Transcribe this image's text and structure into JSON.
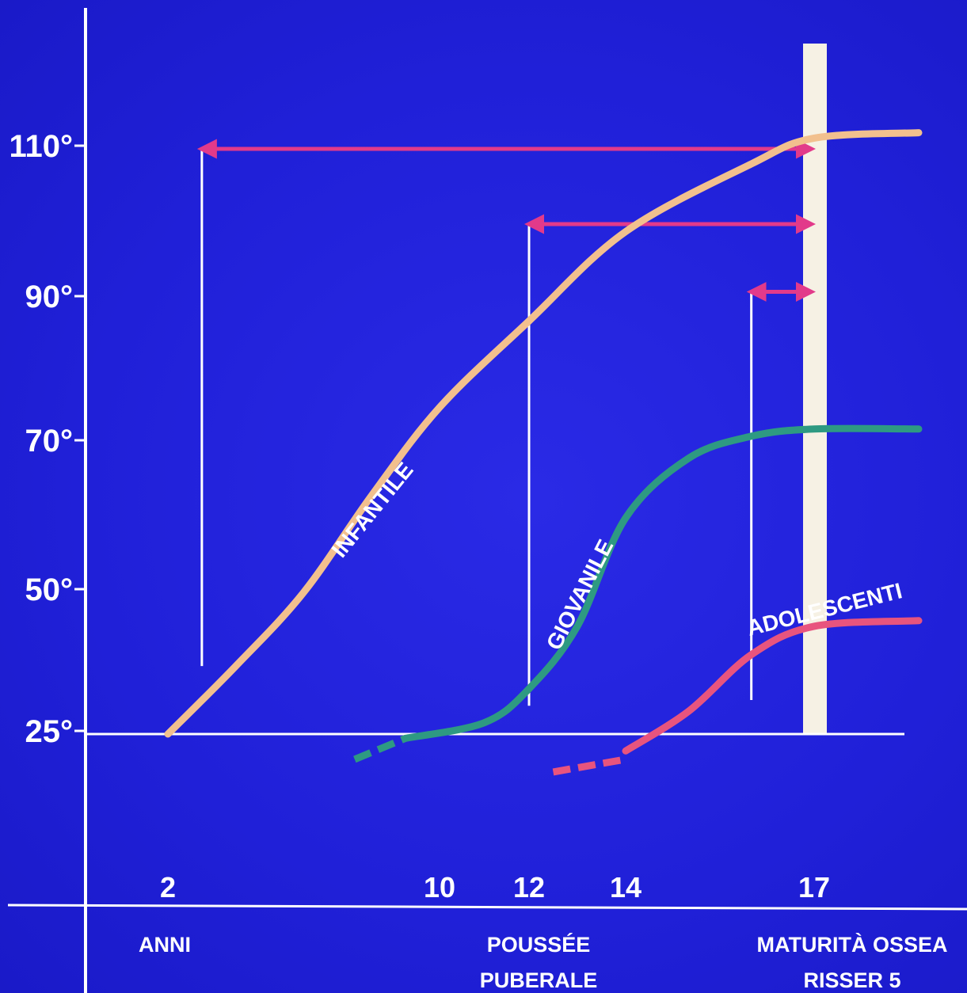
{
  "chart_data": {
    "type": "line",
    "title": "",
    "ylabel": "",
    "xlabel": "",
    "y_ticks": [
      "25°",
      "50°",
      "70°",
      "90°",
      "110°"
    ],
    "x_ticks": [
      "2",
      "10",
      "12",
      "14",
      "17"
    ],
    "x_labels": [
      {
        "lines": [
          "ANNI"
        ]
      },
      {
        "lines": [
          "POUSSÉE",
          "PUBERALE"
        ]
      },
      {
        "lines": [
          "MATURITÀ OSSEA",
          "RISSER 5"
        ]
      }
    ],
    "series": [
      {
        "name": "INFANTILE",
        "color": "#f2c08e",
        "points": [
          [
            2,
            25
          ],
          [
            4,
            37
          ],
          [
            6,
            50
          ],
          [
            8,
            63
          ],
          [
            10,
            75
          ],
          [
            12,
            87
          ],
          [
            14,
            99
          ],
          [
            16,
            108
          ],
          [
            17,
            112
          ],
          [
            18.5,
            113
          ]
        ]
      },
      {
        "name": "GIOVANILE",
        "color": "#2e9a82",
        "dashed_points": [
          [
            7.5,
            19
          ],
          [
            9,
            24
          ]
        ],
        "points": [
          [
            9,
            24
          ],
          [
            11,
            27
          ],
          [
            12,
            33
          ],
          [
            13,
            44
          ],
          [
            14,
            60
          ],
          [
            15,
            68
          ],
          [
            16,
            71
          ],
          [
            17,
            72
          ],
          [
            18.5,
            72
          ]
        ]
      },
      {
        "name": "ADOLESCENTI",
        "color": "#e8547e",
        "dashed_points": [
          [
            12.5,
            16
          ],
          [
            14,
            19
          ]
        ],
        "points": [
          [
            14,
            21
          ],
          [
            15,
            29
          ],
          [
            16,
            39
          ],
          [
            17,
            44
          ],
          [
            18.5,
            45
          ]
        ]
      }
    ],
    "arrows": [
      {
        "from_x": 3,
        "to_x": 17,
        "y": 110,
        "stem_bottom": 37
      },
      {
        "from_x": 12,
        "to_x": 17,
        "y": 100,
        "stem_bottom": 30
      },
      {
        "from_x": 16,
        "to_x": 17,
        "y": 91,
        "stem_bottom": 31
      }
    ],
    "arrow_color": "#e23a8a",
    "maturity_bar": {
      "x": 17,
      "color": "#f6f1e4"
    },
    "axis_color": "#ffffff",
    "background": "#2222dd"
  }
}
